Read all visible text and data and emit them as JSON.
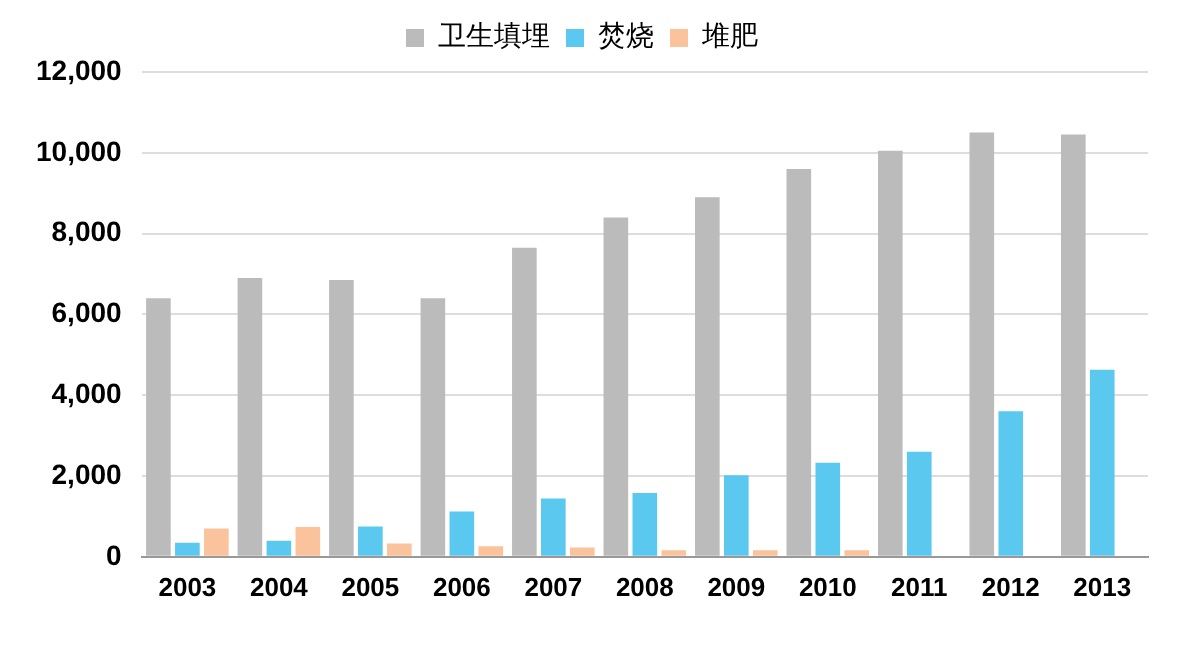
{
  "chart_data": {
    "type": "bar",
    "categories": [
      "2003",
      "2004",
      "2005",
      "2006",
      "2007",
      "2008",
      "2009",
      "2010",
      "2011",
      "2012",
      "2013"
    ],
    "series": [
      {
        "name": "卫生填埋",
        "color": "#bbbbbb",
        "values": [
          6400,
          6900,
          6850,
          6400,
          7650,
          8400,
          8900,
          9600,
          10050,
          10500,
          10450
        ]
      },
      {
        "name": "焚烧",
        "color": "#5bc8f0",
        "values": [
          350,
          400,
          750,
          1120,
          1440,
          1580,
          2020,
          2330,
          2600,
          3600,
          4630
        ]
      },
      {
        "name": "堆肥",
        "color": "#fbc39c",
        "values": [
          700,
          740,
          330,
          260,
          230,
          160,
          160,
          160,
          null,
          null,
          null
        ]
      }
    ],
    "ylim": [
      0,
      12000
    ],
    "yticks": [
      0,
      {
        "value": 2000,
        "label": "2,000"
      },
      {
        "value": 4000,
        "label": "4,000"
      },
      {
        "value": 6000,
        "label": "6,000"
      },
      {
        "value": 8000,
        "label": "8,000"
      },
      {
        "value": 10000,
        "label": "10,000"
      },
      {
        "value": 12000,
        "label": "12,000"
      }
    ],
    "grid": "y",
    "legend": "top"
  }
}
